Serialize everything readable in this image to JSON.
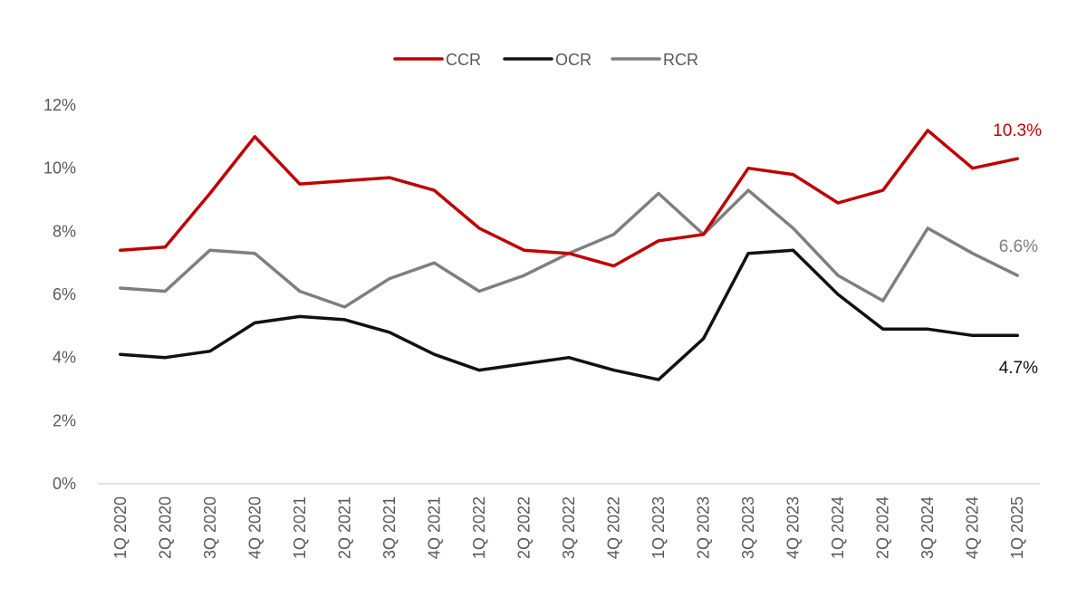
{
  "chart_data": {
    "type": "line",
    "title": "",
    "xlabel": "",
    "ylabel": "",
    "ylim": [
      0,
      12
    ],
    "yticks": [
      0,
      2,
      4,
      6,
      8,
      10,
      12
    ],
    "ytick_labels": [
      "0%",
      "2%",
      "4%",
      "6%",
      "8%",
      "10%",
      "12%"
    ],
    "y_unit": "%",
    "grid": false,
    "legend_position": "top-center",
    "categories": [
      "1Q 2020",
      "2Q 2020",
      "3Q 2020",
      "4Q 2020",
      "1Q 2021",
      "2Q 2021",
      "3Q 2021",
      "4Q 2021",
      "1Q 2022",
      "2Q 2022",
      "3Q 2022",
      "4Q 2022",
      "1Q 2023",
      "2Q 2023",
      "3Q 2023",
      "4Q 2023",
      "1Q 2024",
      "2Q 2024",
      "3Q 2024",
      "4Q 2024",
      "1Q 2025"
    ],
    "series": [
      {
        "name": "CCR",
        "color": "#c00000",
        "values": [
          7.4,
          7.5,
          9.2,
          11.0,
          9.5,
          9.6,
          9.7,
          9.3,
          8.1,
          7.4,
          7.3,
          6.9,
          7.7,
          7.9,
          10.0,
          9.8,
          8.9,
          9.3,
          11.2,
          10.0,
          10.3
        ],
        "end_label": "10.3%"
      },
      {
        "name": "OCR",
        "color": "#111111",
        "values": [
          4.1,
          4.0,
          4.2,
          5.1,
          5.3,
          5.2,
          4.8,
          4.1,
          3.6,
          3.8,
          4.0,
          3.6,
          3.3,
          4.6,
          7.3,
          7.4,
          6.0,
          4.9,
          4.9,
          4.7,
          4.7
        ],
        "end_label": "4.7%"
      },
      {
        "name": "RCR",
        "color": "#7f7f7f",
        "values": [
          6.2,
          6.1,
          7.4,
          7.3,
          6.1,
          5.6,
          6.5,
          7.0,
          6.1,
          6.6,
          7.3,
          7.9,
          9.2,
          7.9,
          9.3,
          8.1,
          6.6,
          5.8,
          8.1,
          7.3,
          6.6
        ],
        "end_label": "6.6%"
      }
    ]
  }
}
